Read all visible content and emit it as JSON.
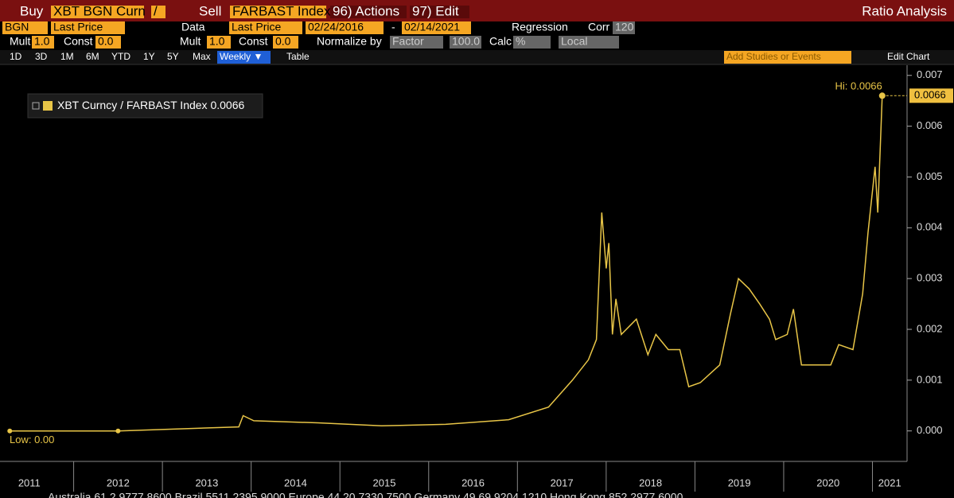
{
  "toolbar": {
    "row1": [
      "Buy",
      "XBT BGN Curn",
      "/",
      "Sell",
      "FARBAST Index",
      "96) Actions",
      "97) Edit",
      "Ratio Analysis"
    ],
    "row2": [
      "BGN",
      "Last Price",
      "Data",
      "Last Price",
      "02/24/2016",
      "-",
      "02/14/2021",
      "Regression",
      "Corr",
      "120"
    ],
    "row3": [
      "Mult",
      "1.0",
      "Const",
      "0.0",
      "Mult",
      "1.0",
      "Const",
      "0.0",
      "Normalize by",
      "Factor",
      "100.0",
      "Calc",
      "%",
      "Local"
    ],
    "row4": [
      "1D",
      "3D",
      "1M",
      "6M",
      "YTD",
      "1Y",
      "5Y",
      "Max",
      "Weekly ▼",
      "Table",
      "Add Studies or Events",
      "Edit Chart"
    ]
  },
  "footer": "Australia 61 2 9777 8600 Brazil 5511 2395 9000 Europe 44 20 7330 7500 Germany 49 69 9204 1210 Hong Kong 852 2977 6000",
  "chart_data": {
    "type": "line",
    "x": [
      2011.28,
      2012.5,
      2013.86,
      2013.91,
      2014.03,
      2014.75,
      2015.47,
      2016.19,
      2016.9,
      2017.35,
      2017.62,
      2017.8,
      2017.89,
      2017.95,
      2018.0,
      2018.03,
      2018.07,
      2018.11,
      2018.17,
      2018.34,
      2018.47,
      2018.56,
      2018.7,
      2018.83,
      2018.93,
      2019.06,
      2019.28,
      2019.4,
      2019.49,
      2019.61,
      2019.73,
      2019.84,
      2019.91,
      2020.04,
      2020.11,
      2020.2,
      2020.31,
      2020.53,
      2020.62,
      2020.78,
      2020.89,
      2020.95,
      2021.03,
      2021.06,
      2021.11
    ],
    "series": [
      {
        "name": "XBT Curncy / FARBAST Index",
        "color": "#e8c547",
        "values": [
          0,
          0,
          8e-05,
          0.0003,
          0.0002,
          0.00016,
          0.0001,
          0.00013,
          0.00022,
          0.00047,
          0.001,
          0.0014,
          0.0018,
          0.0043,
          0.0032,
          0.0037,
          0.0019,
          0.0026,
          0.0019,
          0.0022,
          0.0015,
          0.0019,
          0.0016,
          0.0016,
          0.00087,
          0.00095,
          0.0013,
          0.0023,
          0.003,
          0.0028,
          0.0025,
          0.0022,
          0.0018,
          0.0019,
          0.0024,
          0.0013,
          0.0013,
          0.0013,
          0.0017,
          0.0016,
          0.0027,
          0.0039,
          0.0052,
          0.0043,
          0.0066
        ]
      }
    ],
    "legend_value": "0.0066",
    "hi_label": "Hi: 0.0066",
    "low_label": "Low: 0.00",
    "price_tag": "0.0066",
    "xlim": [
      2011.17,
      2021.39
    ],
    "xticks": [
      2011,
      2012,
      2013,
      2014,
      2015,
      2016,
      2017,
      2018,
      2019,
      2020,
      2021
    ],
    "ylim": [
      -0.0006,
      0.0072
    ],
    "yticks": [
      {
        "value": 0,
        "label": "0.000"
      },
      0.001,
      0.002,
      0.003,
      0.004,
      0.005,
      0.006,
      0.007
    ]
  }
}
